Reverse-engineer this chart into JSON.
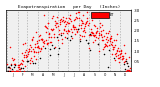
{
  "title": "Evapotranspiration   per Day   (Inches)",
  "background_color": "#ffffff",
  "plot_bg_color": "#f0f0f0",
  "grid_color": "#aaaaaa",
  "num_points": 365,
  "ylim": [
    0.0,
    0.3
  ],
  "ytick_vals": [
    0.05,
    0.1,
    0.15,
    0.2,
    0.25,
    0.3
  ],
  "ytick_labels": [
    ".05",
    ".10",
    ".15",
    ".20",
    ".25",
    ".30"
  ],
  "red_color": "#ff0000",
  "black_color": "#000000",
  "month_starts": [
    0,
    31,
    59,
    90,
    120,
    151,
    181,
    212,
    243,
    273,
    304,
    334
  ],
  "month_labels": [
    "J",
    "F",
    "M",
    "A",
    "M",
    "J",
    "J",
    "A",
    "S",
    "O",
    "N",
    "D"
  ],
  "seed": 12
}
